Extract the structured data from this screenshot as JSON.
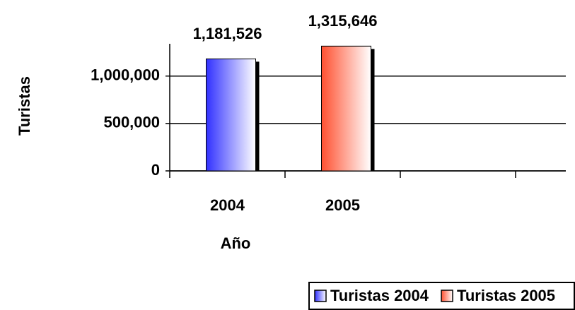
{
  "chart_data": {
    "type": "bar",
    "categories": [
      "2004",
      "2005",
      null,
      null
    ],
    "series": [
      {
        "name": "Turistas 2004",
        "color": "#3030ff",
        "values": [
          1181526,
          null,
          null,
          null
        ],
        "value_labels": [
          "1,181,526",
          null,
          null,
          null
        ]
      },
      {
        "name": "Turistas 2005",
        "color": "#ff5030",
        "values": [
          null,
          1315646,
          null,
          null
        ],
        "value_labels": [
          null,
          "1,315,646",
          null,
          null
        ]
      }
    ],
    "x_label": "Año",
    "y_label": "Turistas",
    "ylim": [
      0,
      1400000
    ],
    "yticks": [
      0,
      {
        "value": 500000,
        "label": "500,000"
      },
      {
        "value": 1000000,
        "label": "1,000,000"
      }
    ],
    "grid": true,
    "legend": "bottom-right"
  }
}
